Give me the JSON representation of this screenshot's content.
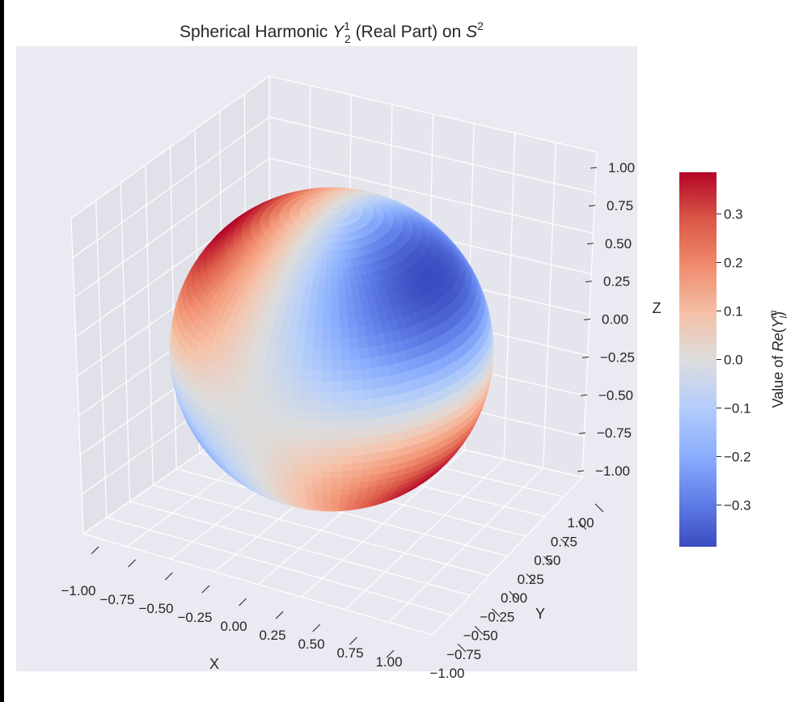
{
  "chart_data": {
    "type": "surface3d",
    "title_prefix": "Spherical Harmonic ",
    "title_symbol": "Y",
    "title_sup": "1",
    "title_sub": "2",
    "title_middle": " (Real Part) on ",
    "title_space": "S",
    "title_space_sup": "2",
    "xlabel": "X",
    "ylabel": "Y",
    "zlabel": "Z",
    "x_ticks": [
      "−1.00",
      "−0.75",
      "−0.50",
      "−0.25",
      "0.00",
      "0.25",
      "0.50",
      "0.75",
      "1.00"
    ],
    "y_ticks": [
      "−1.00",
      "−0.75",
      "−0.50",
      "−0.25",
      "0.00",
      "0.25",
      "0.50",
      "0.75",
      "1.00"
    ],
    "z_ticks": [
      "1.00",
      "0.75",
      "0.50",
      "0.25",
      "0.00",
      "−0.25",
      "−0.50",
      "−0.75",
      "−1.00"
    ],
    "xlim": [
      -1,
      1
    ],
    "ylim": [
      -1,
      1
    ],
    "zlim": [
      -1,
      1
    ],
    "colormap": "coolwarm",
    "colorbar": {
      "label_prefix": "Value of ",
      "label_func": "Re",
      "label_sym": "Y",
      "label_sup": "m",
      "label_sub": "l",
      "range": [
        -0.386,
        0.386
      ],
      "ticks": [
        "0.3",
        "0.2",
        "0.1",
        "0.0",
        "−0.1",
        "−0.2",
        "−0.3"
      ],
      "tick_values": [
        0.3,
        0.2,
        0.1,
        0.0,
        -0.1,
        -0.2,
        -0.3
      ]
    },
    "function": "Re(Y_2^1) = -sqrt(15/(8*pi)) * sin(theta) * cos(theta) * cos(phi)",
    "grid": true,
    "pane_color": "#eaeaf2",
    "colors": {
      "cold": "#3b4cc0",
      "neutral": "#dddddd",
      "warm": "#b40426",
      "grid": "#ffffff"
    }
  }
}
